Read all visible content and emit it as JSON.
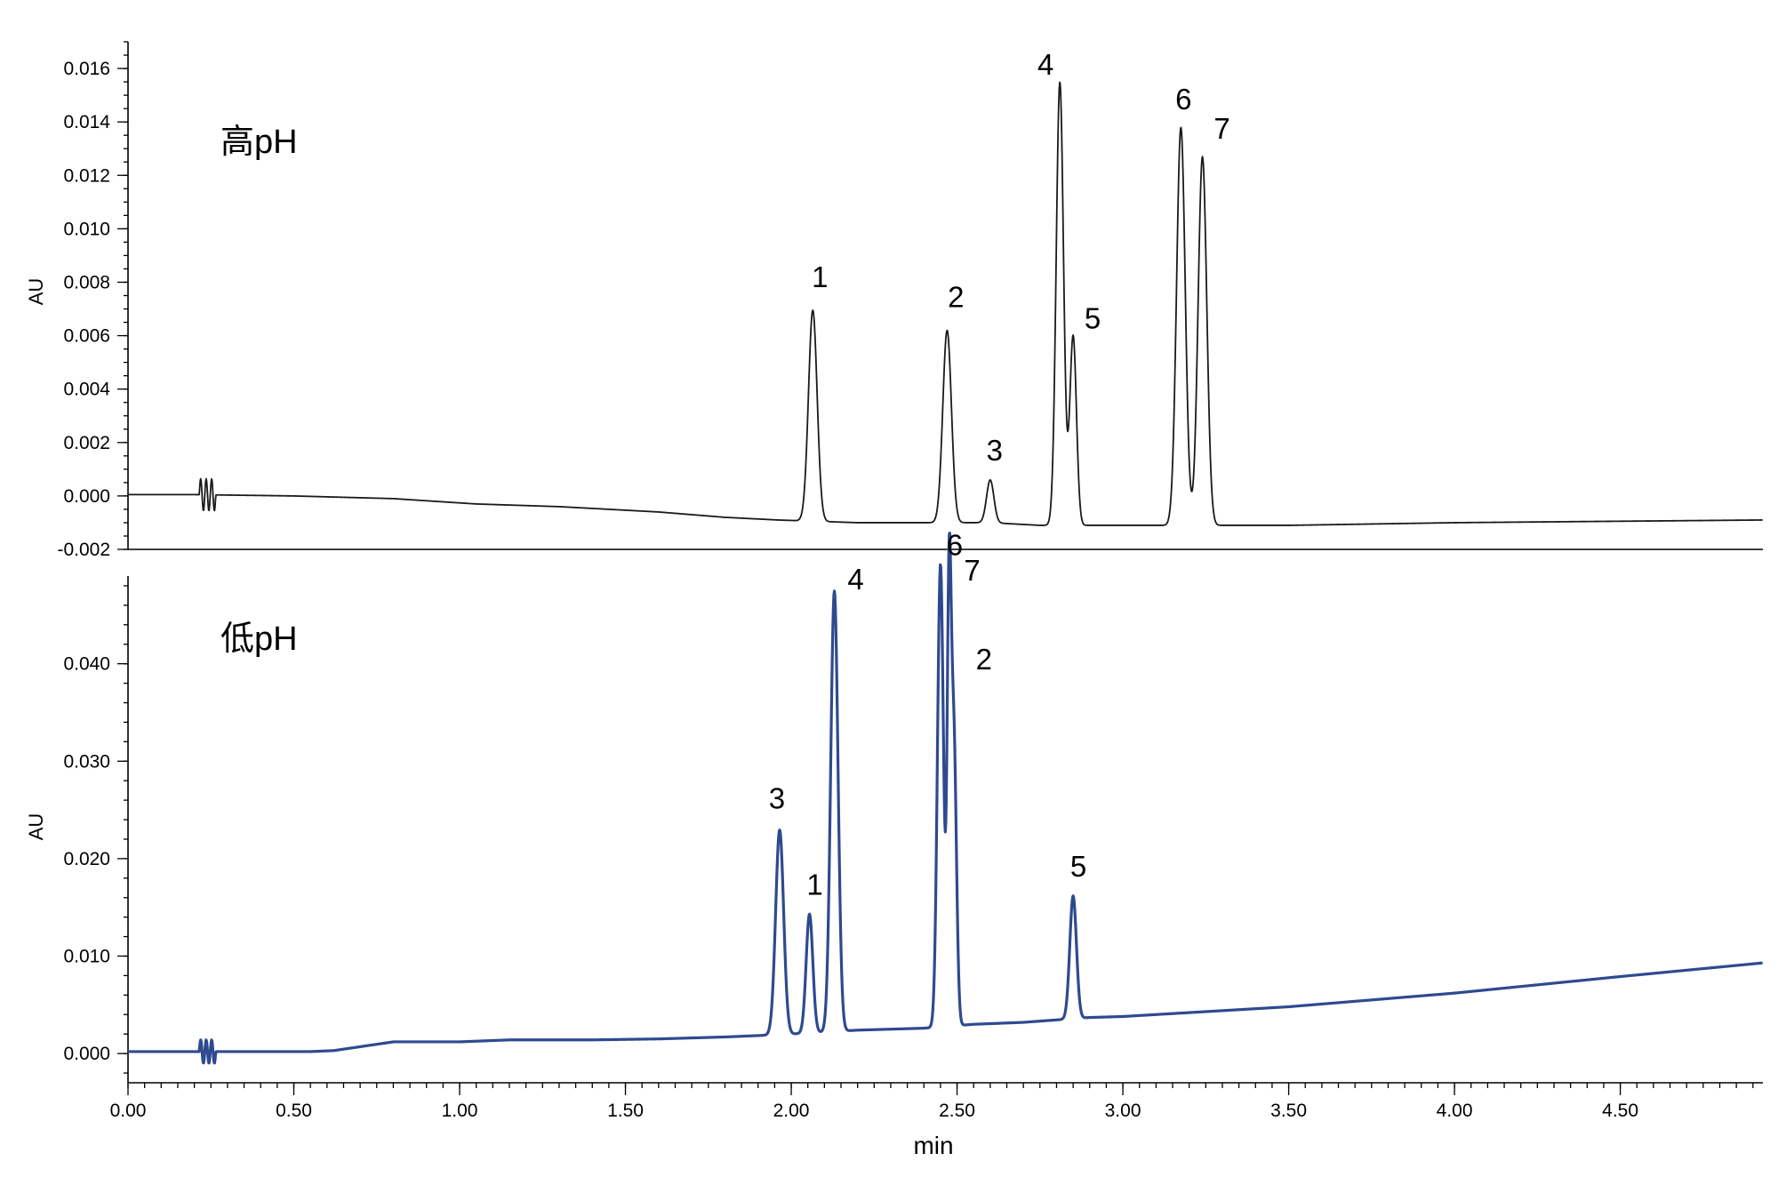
{
  "chart_data": [
    {
      "type": "line",
      "panel_label": "高pH",
      "ylabel": "AU",
      "ylim": [
        -0.002,
        0.017
      ],
      "yticks": [
        -0.002,
        0.0,
        0.002,
        0.004,
        0.006,
        0.008,
        0.01,
        0.012,
        0.014,
        0.016
      ],
      "ytick_labels": [
        "-0.002",
        "0.000",
        "0.002",
        "0.004",
        "0.006",
        "0.008",
        "0.010",
        "0.012",
        "0.014",
        "0.016"
      ],
      "color": "#1a1a1a",
      "baseline": [
        [
          0.0,
          5e-05
        ],
        [
          0.2,
          5e-05
        ],
        [
          0.5,
          0.0
        ],
        [
          0.8,
          -0.0001
        ],
        [
          1.05,
          -0.0003
        ],
        [
          1.3,
          -0.0004
        ],
        [
          1.6,
          -0.0006
        ],
        [
          1.8,
          -0.0008
        ],
        [
          1.96,
          -0.0009
        ],
        [
          2.2,
          -0.001
        ],
        [
          2.6,
          -0.001
        ],
        [
          2.75,
          -0.0011
        ],
        [
          3.0,
          -0.0011
        ],
        [
          3.3,
          -0.0011
        ],
        [
          3.5,
          -0.0011
        ],
        [
          4.0,
          -0.001
        ],
        [
          4.93,
          -0.0009
        ]
      ],
      "peaks": [
        {
          "label": "1",
          "rt": 2.065,
          "height": 0.0079,
          "width": 0.013
        },
        {
          "label": "2",
          "rt": 2.47,
          "height": 0.0072,
          "width": 0.013
        },
        {
          "label": "3",
          "rt": 2.6,
          "height": 0.0016,
          "width": 0.011
        },
        {
          "label": "4",
          "rt": 2.81,
          "height": 0.0166,
          "width": 0.011
        },
        {
          "label": "5",
          "rt": 2.85,
          "height": 0.0071,
          "width": 0.01
        },
        {
          "label": "6",
          "rt": 3.175,
          "height": 0.0149,
          "width": 0.013
        },
        {
          "label": "7",
          "rt": 3.24,
          "height": 0.0138,
          "width": 0.013
        }
      ]
    },
    {
      "type": "line",
      "panel_label": "低pH",
      "ylabel": "AU",
      "ylim": [
        -0.003,
        0.049
      ],
      "yticks": [
        0.0,
        0.01,
        0.02,
        0.03,
        0.04
      ],
      "ytick_labels": [
        "0.000",
        "0.010",
        "0.020",
        "0.030",
        "0.040"
      ],
      "color": "#2e4a8f",
      "baseline": [
        [
          0.0,
          0.0002
        ],
        [
          0.55,
          0.0002
        ],
        [
          0.62,
          0.0003
        ],
        [
          0.8,
          0.0012
        ],
        [
          1.0,
          0.0012
        ],
        [
          1.15,
          0.0014
        ],
        [
          1.4,
          0.0014
        ],
        [
          1.6,
          0.0015
        ],
        [
          1.8,
          0.0017
        ],
        [
          1.94,
          0.0019
        ],
        [
          2.0,
          0.002
        ],
        [
          2.2,
          0.0024
        ],
        [
          2.4,
          0.0026
        ],
        [
          2.55,
          0.003
        ],
        [
          2.7,
          0.0032
        ],
        [
          2.9,
          0.0037
        ],
        [
          3.0,
          0.0038
        ],
        [
          3.5,
          0.0048
        ],
        [
          4.0,
          0.0062
        ],
        [
          4.5,
          0.0079
        ],
        [
          4.93,
          0.0093
        ]
      ],
      "peaks": [
        {
          "label": "3",
          "rt": 1.965,
          "height": 0.021,
          "width": 0.012
        },
        {
          "label": "1",
          "rt": 2.055,
          "height": 0.0122,
          "width": 0.01
        },
        {
          "label": "4",
          "rt": 2.13,
          "height": 0.0452,
          "width": 0.011
        },
        {
          "label": "6",
          "rt": 2.45,
          "height": 0.0475,
          "width": 0.009
        },
        {
          "label": "7",
          "rt": 2.476,
          "height": 0.0428,
          "width": 0.006
        },
        {
          "label": "2",
          "rt": 2.49,
          "height": 0.03,
          "width": 0.008
        },
        {
          "label": "5",
          "rt": 2.85,
          "height": 0.0126,
          "width": 0.01
        }
      ]
    }
  ],
  "x_axis": {
    "label": "min",
    "xlim": [
      0.0,
      4.93
    ],
    "major_ticks": [
      0.0,
      0.5,
      1.0,
      1.5,
      2.0,
      2.5,
      3.0,
      3.5,
      4.0,
      4.5
    ],
    "major_tick_labels": [
      "0.00",
      "0.50",
      "1.00",
      "1.50",
      "2.00",
      "2.50",
      "3.00",
      "3.50",
      "4.00",
      "4.50"
    ],
    "minor_step": 0.05
  }
}
